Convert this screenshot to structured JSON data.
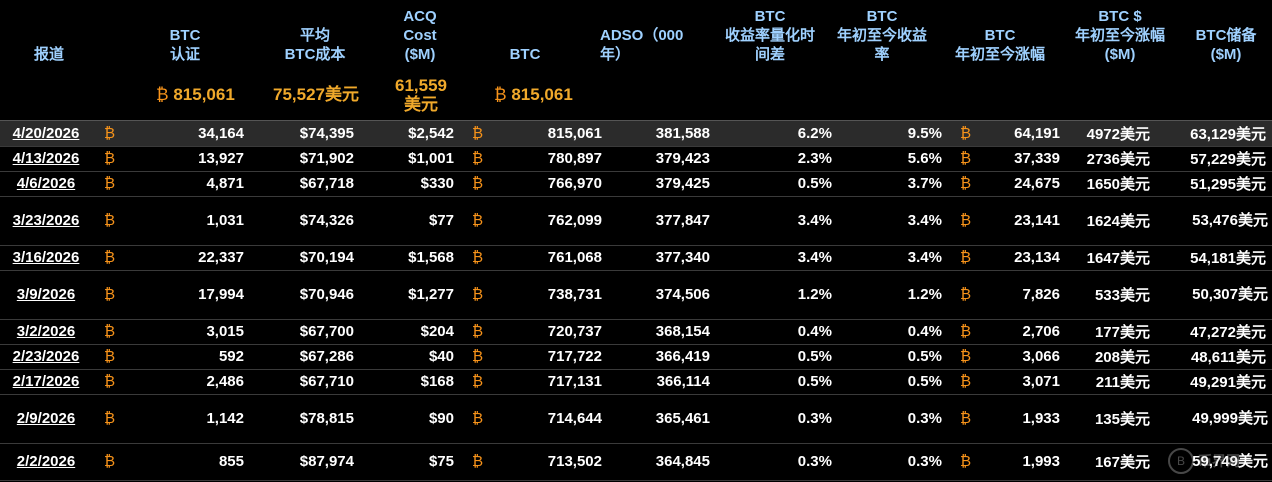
{
  "headers": {
    "date": "报道",
    "btc_cert": [
      "BTC",
      "认证"
    ],
    "avg_cost": [
      "平均",
      "BTC成本"
    ],
    "acq_cost": [
      "ACQ",
      "Cost",
      "($M)"
    ],
    "btc": "BTC",
    "adso": [
      "ADSO（000",
      "年）"
    ],
    "yield_lag": [
      "BTC",
      "收益率量化时",
      "间差"
    ],
    "ytd_yield": [
      "BTC",
      "年初至今收益",
      "率"
    ],
    "ytd_gain": [
      "BTC",
      "年初至今涨幅"
    ],
    "ytd_gain_usd": [
      "BTC $",
      "年初至今涨幅",
      "($M)"
    ],
    "reserve": [
      "BTC储备",
      "($M)"
    ]
  },
  "btc_symbol": "₿",
  "totals": {
    "btc_cert": "815,061",
    "avg_cost": "75,527美元",
    "acq_cost": [
      "61,559",
      "美元"
    ],
    "btc": "815,061"
  },
  "rows": [
    {
      "date": "4/20/2026",
      "cert": "34,164",
      "avg": "$74,395",
      "acq": "$2,542",
      "btc": "815,061",
      "adso": "381,588",
      "lag": "6.2%",
      "ytd": "9.5%",
      "gain": "64,191",
      "gain_usd": "4972美元",
      "reserve": "63,129美元"
    },
    {
      "date": "4/13/2026",
      "cert": "13,927",
      "avg": "$71,902",
      "acq": "$1,001",
      "btc": "780,897",
      "adso": "379,423",
      "lag": "2.3%",
      "ytd": "5.6%",
      "gain": "37,339",
      "gain_usd": "2736美元",
      "reserve": "57,229美元"
    },
    {
      "date": "4/6/2026",
      "cert": "4,871",
      "avg": "$67,718",
      "acq": "$330",
      "btc": "766,970",
      "adso": "379,425",
      "lag": "0.5%",
      "ytd": "3.7%",
      "gain": "24,675",
      "gain_usd": "1650美元",
      "reserve": "51,295美元"
    },
    {
      "date": "3/23/2026",
      "cert": "1,031",
      "avg": "$74,326",
      "acq": "$77",
      "btc": "762,099",
      "adso": "377,847",
      "lag": "3.4%",
      "ytd": "3.4%",
      "gain": "23,141",
      "gain_usd": "1624美元",
      "reserve": "53,476美元"
    },
    {
      "date": "3/16/2026",
      "cert": "22,337",
      "avg": "$70,194",
      "acq": "$1,568",
      "btc": "761,068",
      "adso": "377,340",
      "lag": "3.4%",
      "ytd": "3.4%",
      "gain": "23,134",
      "gain_usd": "1647美元",
      "reserve": "54,181美元"
    },
    {
      "date": "3/9/2026",
      "cert": "17,994",
      "avg": "$70,946",
      "acq": "$1,277",
      "btc": "738,731",
      "adso": "374,506",
      "lag": "1.2%",
      "ytd": "1.2%",
      "gain": "7,826",
      "gain_usd": "533美元",
      "reserve": "50,307美元"
    },
    {
      "date": "3/2/2026",
      "cert": "3,015",
      "avg": "$67,700",
      "acq": "$204",
      "btc": "720,737",
      "adso": "368,154",
      "lag": "0.4%",
      "ytd": "0.4%",
      "gain": "2,706",
      "gain_usd": "177美元",
      "reserve": "47,272美元"
    },
    {
      "date": "2/23/2026",
      "cert": "592",
      "avg": "$67,286",
      "acq": "$40",
      "btc": "717,722",
      "adso": "366,419",
      "lag": "0.5%",
      "ytd": "0.5%",
      "gain": "3,066",
      "gain_usd": "208美元",
      "reserve": "48,611美元"
    },
    {
      "date": "2/17/2026",
      "cert": "2,486",
      "avg": "$67,710",
      "acq": "$168",
      "btc": "717,131",
      "adso": "366,114",
      "lag": "0.5%",
      "ytd": "0.5%",
      "gain": "3,071",
      "gain_usd": "211美元",
      "reserve": "49,291美元"
    },
    {
      "date": "2/9/2026",
      "cert": "1,142",
      "avg": "$78,815",
      "acq": "$90",
      "btc": "714,644",
      "adso": "365,461",
      "lag": "0.3%",
      "ytd": "0.3%",
      "gain": "1,933",
      "gain_usd": "135美元",
      "reserve": "49,999美元"
    },
    {
      "date": "2/2/2026",
      "cert": "855",
      "avg": "$87,974",
      "acq": "$75",
      "btc": "713,502",
      "adso": "364,845",
      "lag": "0.3%",
      "ytd": "0.3%",
      "gain": "1,993",
      "gain_usd": "167美元",
      "reserve": "59,749美元"
    }
  ],
  "watermark": "币界网",
  "colors": {
    "header": "#9fd1ff",
    "totals": "#f0a92b",
    "btc_icon": "#f7931a",
    "background": "#000000"
  }
}
